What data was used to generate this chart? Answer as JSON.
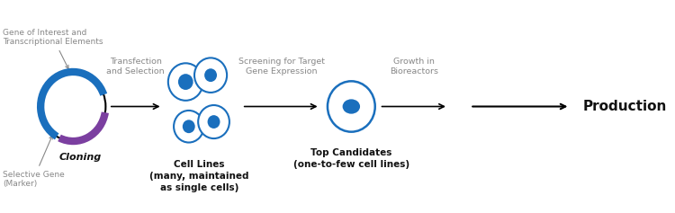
{
  "bg_color": "#ffffff",
  "text_color": "#333333",
  "arrow_color": "#555555",
  "blue_color": "#1a6fbd",
  "purple_color": "#7b3fa0",
  "cell_outline_color": "#1a6fbd",
  "cell_fill_color": "#ffffff",
  "nucleus_color": "#1a6fbd",
  "plasmid_color": "#000000",
  "labels": {
    "gene_interest": "Gene of Interest and\nTranscriptional Elements",
    "selective_gene": "Selective Gene\n(Marker)",
    "cloning": "Cloning",
    "transfection": "Transfection\nand Selection",
    "cell_lines": "Cell Lines\n(many, maintained\nas single cells)",
    "screening": "Screening for Target\nGene Expression",
    "top_candidates": "Top Candidates\n(one-to-few cell lines)",
    "growth": "Growth in\nBioreactors",
    "production": "Production"
  },
  "figsize": [
    7.5,
    2.37
  ],
  "dpi": 100
}
